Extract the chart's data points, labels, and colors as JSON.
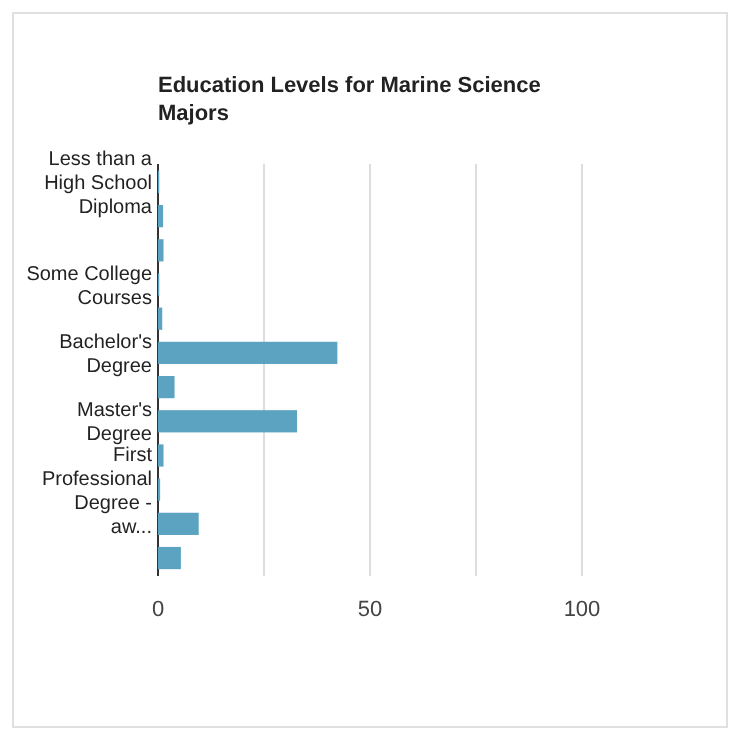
{
  "chart_data": {
    "type": "bar",
    "orientation": "horizontal",
    "title": "Education Levels for Marine Science Majors",
    "categories": [
      "Less than a High School Diploma",
      null,
      null,
      "Some College Courses",
      null,
      "Bachelor's Degree",
      null,
      "Master's Degree",
      null,
      "First Professional Degree - aw...",
      null,
      null
    ],
    "values": [
      0.3,
      1.2,
      1.3,
      0.3,
      1,
      42.3,
      3.9,
      32.8,
      1.3,
      0.5,
      9.6,
      5.4
    ],
    "color": "#5ba3c0",
    "xlim": [
      0,
      100
    ],
    "xticks": [
      0,
      {
        "value": 25,
        "label": null
      },
      50,
      {
        "value": 75,
        "label": null
      },
      100
    ],
    "grid": "x"
  }
}
